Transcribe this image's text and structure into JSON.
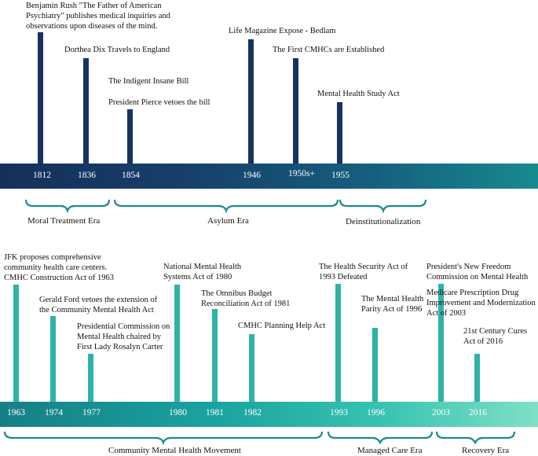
{
  "timeline_top": {
    "years": [
      "1812",
      "1836",
      "1854",
      "1946",
      "1950s+",
      "1955"
    ],
    "events": [
      "Benjamin Rush \"The Father of American Psychiatry\" publishes medical inquiries and observations upon diseases of the mind.",
      "Dorthea Dix Travels to England",
      "The Indigent Insane Bill",
      "President Pierce vetoes the bill",
      "Life Magazine Expose - Bedlam",
      "The First CMHCs are Established",
      "Mental Health Study Act"
    ],
    "eras": [
      "Moral Treatment Era",
      "Asylum Era",
      "Deinstitutionalization"
    ]
  },
  "timeline_bottom": {
    "years": [
      "1963",
      "1974",
      "1977",
      "1980",
      "1981",
      "1982",
      "1993",
      "1996",
      "2003",
      "2016"
    ],
    "events": [
      "JFK proposes comprehensive community health care centers. CMHC Construction Act of 1963",
      "Gerald Ford vetoes the extension of the Community Mental Health Act",
      "Presidential Commission on Mental Health chaired by First Lady Rosalyn Carter",
      "National Mental Health Systems Act of 1980",
      "The Omnibus Budget Reconciliation Act of 1981",
      "CMHC Planning Help Act",
      "The Health Security Act of 1993 Defeated",
      "The Mental Health Parity Act of 1996",
      "President's New Freedom Commission on Mental Health",
      "Medicare Prescription Drug Improvement and Modernization Act of 2003",
      "21st Century Cures Act of 2016"
    ],
    "eras": [
      "Community Mental Health Movement",
      "Managed Care Era",
      "Recovery Era"
    ]
  },
  "colors": {
    "top_stem": "#17345f",
    "bottom_stem": "#2fb3a6",
    "brace": "#1d8a8c"
  }
}
